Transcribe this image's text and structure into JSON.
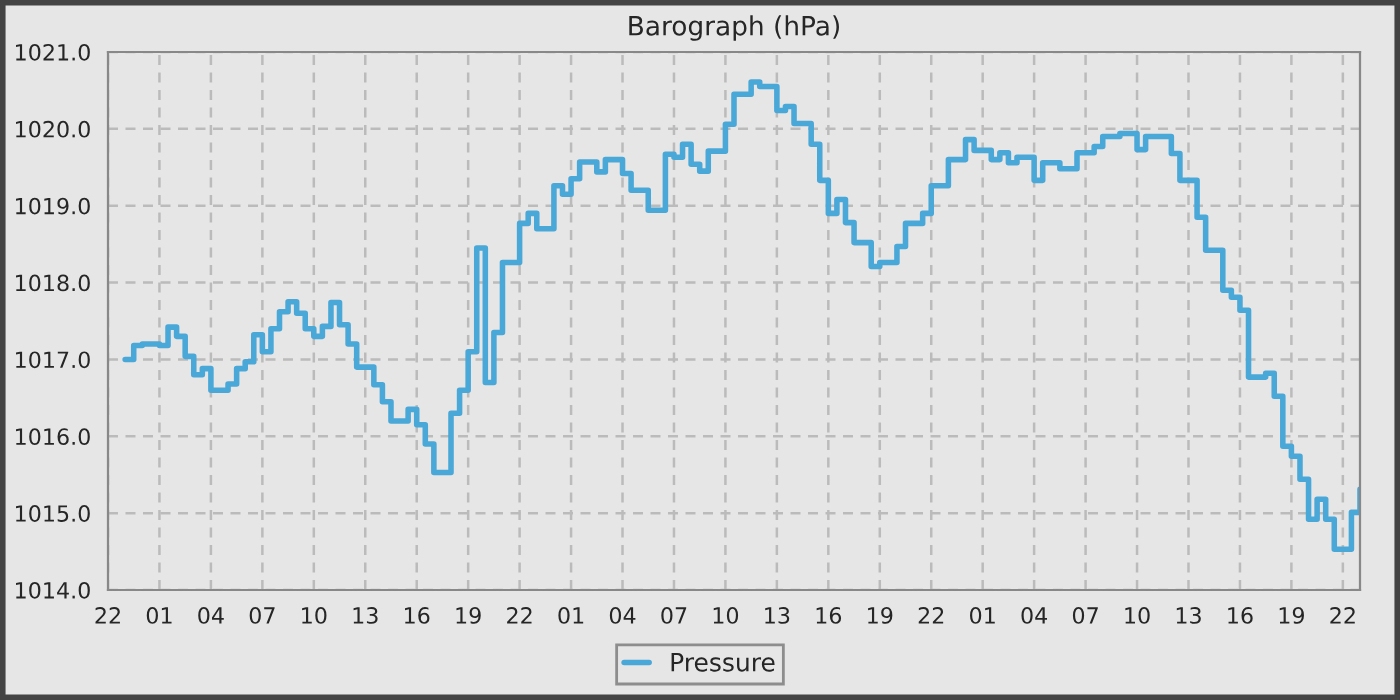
{
  "chart_data": {
    "type": "step",
    "title": "Barograph (hPa)",
    "categories": [
      "22",
      null,
      null,
      null,
      null,
      null,
      "01",
      null,
      null,
      null,
      null,
      null,
      "04",
      null,
      null,
      null,
      null,
      null,
      "07",
      null,
      null,
      null,
      null,
      null,
      "10",
      null,
      null,
      null,
      null,
      null,
      "13",
      null,
      null,
      null,
      null,
      null,
      "16",
      null,
      null,
      null,
      null,
      null,
      "19",
      null,
      null,
      null,
      null,
      null,
      "22",
      null,
      null,
      null,
      null,
      null,
      "01",
      null,
      null,
      null,
      null,
      null,
      "04",
      null,
      null,
      null,
      null,
      null,
      "07",
      null,
      null,
      null,
      null,
      null,
      "10",
      null,
      null,
      null,
      null,
      null,
      "13",
      null,
      null,
      null,
      null,
      null,
      "16",
      null,
      null,
      null,
      null,
      null,
      "19",
      null,
      null,
      null,
      null,
      null,
      "22",
      null,
      null,
      null,
      null,
      null,
      "01",
      null,
      null,
      null,
      null,
      null,
      "04",
      null,
      null,
      null,
      null,
      null,
      "07",
      null,
      null,
      null,
      null,
      null,
      "10",
      null,
      null,
      null,
      null,
      null,
      "13",
      null,
      null,
      null,
      null,
      null,
      "16",
      null,
      null,
      null,
      null,
      null,
      "19",
      null,
      null,
      null,
      null,
      null,
      "22",
      null,
      null
    ],
    "series": [
      {
        "name": "Pressure",
        "color": "#4aa8d8",
        "values": [
          null,
          null,
          1017.0,
          1017.18,
          1017.2,
          1017.2,
          1017.18,
          1017.42,
          1017.3,
          1017.04,
          1016.8,
          1016.88,
          1016.6,
          1016.6,
          1016.68,
          1016.88,
          1016.97,
          1017.32,
          1017.1,
          1017.4,
          1017.62,
          1017.75,
          1017.6,
          1017.4,
          1017.3,
          1017.43,
          1017.74,
          1017.45,
          1017.2,
          1016.9,
          1016.9,
          1016.67,
          1016.45,
          1016.2,
          1016.2,
          1016.35,
          1016.15,
          1015.9,
          1015.53,
          1015.53,
          1016.3,
          1016.6,
          1017.1,
          1018.45,
          1016.7,
          1017.35,
          1018.26,
          1018.26,
          1018.77,
          1018.9,
          1018.7,
          1018.7,
          1019.26,
          1019.15,
          1019.35,
          1019.57,
          1019.57,
          1019.44,
          1019.6,
          1019.6,
          1019.42,
          1019.2,
          1019.2,
          1018.94,
          1018.94,
          1019.67,
          1019.63,
          1019.8,
          1019.54,
          1019.45,
          1019.71,
          1019.71,
          1020.06,
          1020.45,
          1020.45,
          1020.61,
          1020.55,
          1020.55,
          1020.24,
          1020.29,
          1020.07,
          1020.07,
          1019.8,
          1019.33,
          1018.9,
          1019.08,
          1018.78,
          1018.52,
          1018.52,
          1018.21,
          1018.26,
          1018.26,
          1018.47,
          1018.77,
          1018.77,
          1018.9,
          1019.26,
          1019.26,
          1019.6,
          1019.6,
          1019.86,
          1019.72,
          1019.72,
          1019.6,
          1019.69,
          1019.56,
          1019.63,
          1019.63,
          1019.33,
          1019.56,
          1019.56,
          1019.48,
          1019.48,
          1019.69,
          1019.69,
          1019.77,
          1019.9,
          1019.9,
          1019.94,
          1019.94,
          1019.73,
          1019.9,
          1019.9,
          1019.9,
          1019.68,
          1019.33,
          1019.33,
          1018.85,
          1018.42,
          1018.42,
          1017.9,
          1017.81,
          1017.64,
          1016.77,
          1016.77,
          1016.82,
          1016.52,
          1015.87,
          1015.74,
          1015.44,
          1014.92,
          1015.18,
          1014.92,
          1014.53,
          1014.53,
          1015.01,
          1015.31
        ]
      }
    ],
    "ylim": [
      1014,
      1021
    ],
    "yticks": [
      {
        "value": 1014,
        "label": "1014.0"
      },
      {
        "value": 1015,
        "label": "1015.0"
      },
      {
        "value": 1016,
        "label": "1016.0"
      },
      {
        "value": 1017,
        "label": "1017.0"
      },
      {
        "value": 1018,
        "label": "1018.0"
      },
      {
        "value": 1019,
        "label": "1019.0"
      },
      {
        "value": 1020,
        "label": "1020.0"
      },
      {
        "value": 1021,
        "label": "1021.0"
      }
    ],
    "grid": true,
    "legend": "bottom",
    "line_style": "solid"
  }
}
